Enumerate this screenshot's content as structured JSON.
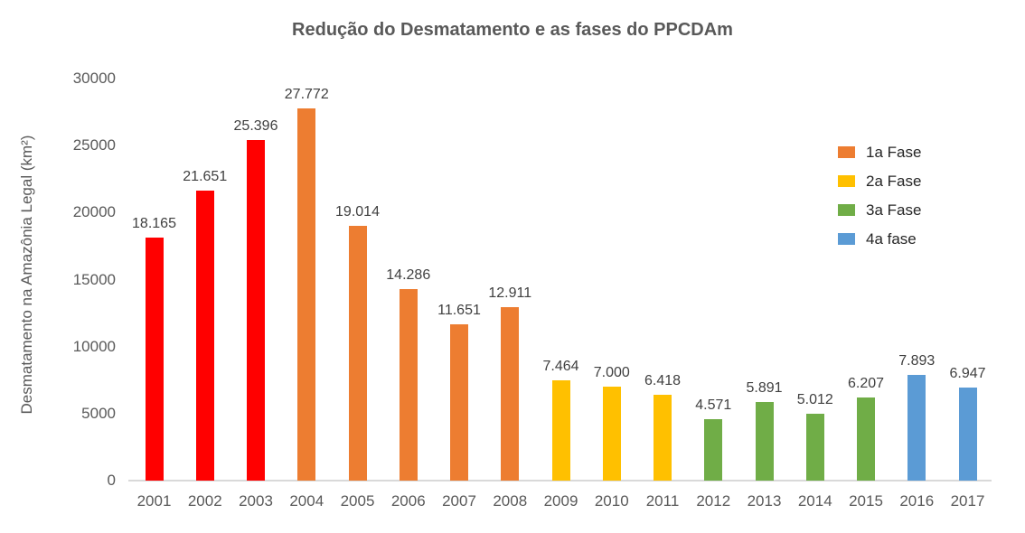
{
  "chart_data": {
    "type": "bar",
    "title": "Redução do Desmatamento e as fases do PPCDAm",
    "xlabel": "",
    "ylabel": "Desmatamento na Amazônia Legal (km²)",
    "ylim": [
      0,
      30000
    ],
    "grid": false,
    "ytick_labels": [
      "0",
      "5000",
      "10000",
      "15000",
      "20000",
      "25000",
      "30000"
    ],
    "categories": [
      "2001",
      "2002",
      "2003",
      "2004",
      "2005",
      "2006",
      "2007",
      "2008",
      "2009",
      "2010",
      "2011",
      "2012",
      "2013",
      "2014",
      "2015",
      "2016",
      "2017"
    ],
    "values": [
      18165,
      21651,
      25396,
      27772,
      19014,
      14286,
      11651,
      12911,
      7464,
      7000,
      6418,
      4571,
      5891,
      5012,
      6207,
      7893,
      6947
    ],
    "value_labels": [
      "18.165",
      "21.651",
      "25.396",
      "27.772",
      "19.014",
      "14.286",
      "11.651",
      "12.911",
      "7.464",
      "7.000",
      "6.418",
      "4.571",
      "5.891",
      "5.012",
      "6.207",
      "7.893",
      "6.947"
    ],
    "bar_phases": [
      "pre",
      "pre",
      "pre",
      "fase1",
      "fase1",
      "fase1",
      "fase1",
      "fase1",
      "fase2",
      "fase2",
      "fase2",
      "fase3",
      "fase3",
      "fase3",
      "fase3",
      "fase4",
      "fase4"
    ],
    "phase_colors": {
      "pre": "#ff0000",
      "fase1": "#ed7d31",
      "fase2": "#ffc000",
      "fase3": "#70ad47",
      "fase4": "#5b9bd5"
    },
    "axis_line_color": "#d9d9d9",
    "legend": {
      "position": "right",
      "entries": [
        {
          "label": "1a Fase",
          "color": "#ed7d31"
        },
        {
          "label": "2a Fase",
          "color": "#ffc000"
        },
        {
          "label": "3a Fase",
          "color": "#70ad47"
        },
        {
          "label": "4a fase",
          "color": "#5b9bd5"
        }
      ]
    }
  }
}
